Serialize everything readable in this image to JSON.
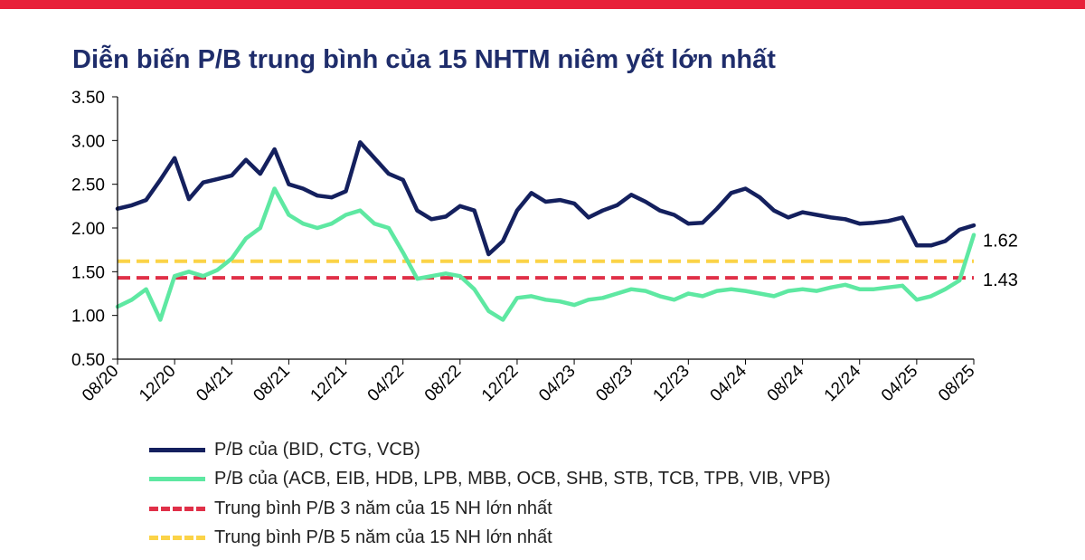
{
  "chart_data": {
    "type": "line",
    "title": "Diễn biến P/B trung bình của 15 NHTM niêm yết lớn nhất",
    "ylim": [
      0.5,
      3.5
    ],
    "yticks": [
      "3.50",
      "3.00",
      "2.50",
      "2.00",
      "1.50",
      "1.00",
      "0.50"
    ],
    "xlim": [
      "08/20",
      "08/25"
    ],
    "xticks": [
      "08/20",
      "12/20",
      "04/21",
      "08/21",
      "12/21",
      "04/22",
      "08/22",
      "12/22",
      "04/23",
      "08/23",
      "12/23",
      "04/24",
      "08/24",
      "12/24",
      "04/25",
      "08/25"
    ],
    "series": [
      {
        "name": "P/B của (BID, CTG, VCB)",
        "color": "#14205e",
        "style": "solid",
        "x": [
          "08/20",
          "09/20",
          "10/20",
          "11/20",
          "12/20",
          "01/21",
          "02/21",
          "03/21",
          "04/21",
          "05/21",
          "06/21",
          "07/21",
          "08/21",
          "09/21",
          "10/21",
          "11/21",
          "12/21",
          "01/22",
          "02/22",
          "03/22",
          "04/22",
          "05/22",
          "06/22",
          "07/22",
          "08/22",
          "09/22",
          "10/22",
          "11/22",
          "12/22",
          "01/23",
          "02/23",
          "03/23",
          "04/23",
          "05/23",
          "06/23",
          "07/23",
          "08/23",
          "09/23",
          "10/23",
          "11/23",
          "12/23",
          "01/24",
          "02/24",
          "03/24",
          "04/24",
          "05/24",
          "06/24",
          "07/24",
          "08/24",
          "09/24",
          "10/24",
          "11/24",
          "12/24",
          "01/25",
          "02/25",
          "03/25",
          "04/25",
          "05/25",
          "06/25",
          "07/25",
          "08/25"
        ],
        "values": [
          2.22,
          2.26,
          2.32,
          2.55,
          2.8,
          2.33,
          2.52,
          2.56,
          2.6,
          2.78,
          2.62,
          2.9,
          2.5,
          2.45,
          2.37,
          2.35,
          2.42,
          2.98,
          2.8,
          2.62,
          2.55,
          2.2,
          2.1,
          2.13,
          2.25,
          2.2,
          1.7,
          1.85,
          2.2,
          2.4,
          2.3,
          2.32,
          2.28,
          2.12,
          2.2,
          2.26,
          2.38,
          2.3,
          2.2,
          2.15,
          2.05,
          2.06,
          2.22,
          2.4,
          2.45,
          2.35,
          2.2,
          2.12,
          2.18,
          2.15,
          2.12,
          2.1,
          2.05,
          2.06,
          2.08,
          2.12,
          1.8,
          1.8,
          1.85,
          1.98,
          2.03
        ]
      },
      {
        "name": "P/B của (ACB, EIB, HDB,  LPB, MBB, OCB, SHB, STB, TCB, TPB, VIB, VPB)",
        "color": "#5ee8a2",
        "style": "solid",
        "x": [
          "08/20",
          "09/20",
          "10/20",
          "11/20",
          "12/20",
          "01/21",
          "02/21",
          "03/21",
          "04/21",
          "05/21",
          "06/21",
          "07/21",
          "08/21",
          "09/21",
          "10/21",
          "11/21",
          "12/21",
          "01/22",
          "02/22",
          "03/22",
          "04/22",
          "05/22",
          "06/22",
          "07/22",
          "08/22",
          "09/22",
          "10/22",
          "11/22",
          "12/22",
          "01/23",
          "02/23",
          "03/23",
          "04/23",
          "05/23",
          "06/23",
          "07/23",
          "08/23",
          "09/23",
          "10/23",
          "11/23",
          "12/23",
          "01/24",
          "02/24",
          "03/24",
          "04/24",
          "05/24",
          "06/24",
          "07/24",
          "08/24",
          "09/24",
          "10/24",
          "11/24",
          "12/24",
          "01/25",
          "02/25",
          "03/25",
          "04/25",
          "05/25",
          "06/25",
          "07/25",
          "08/25"
        ],
        "values": [
          1.1,
          1.18,
          1.3,
          0.95,
          1.45,
          1.5,
          1.45,
          1.52,
          1.65,
          1.88,
          2.0,
          2.45,
          2.15,
          2.05,
          2.0,
          2.05,
          2.15,
          2.2,
          2.05,
          2.0,
          1.72,
          1.42,
          1.45,
          1.48,
          1.45,
          1.3,
          1.05,
          0.95,
          1.2,
          1.22,
          1.18,
          1.16,
          1.12,
          1.18,
          1.2,
          1.25,
          1.3,
          1.28,
          1.22,
          1.18,
          1.25,
          1.22,
          1.28,
          1.3,
          1.28,
          1.25,
          1.22,
          1.28,
          1.3,
          1.28,
          1.32,
          1.35,
          1.3,
          1.3,
          1.32,
          1.34,
          1.18,
          1.22,
          1.3,
          1.4,
          1.92
        ]
      },
      {
        "name": "Trung bình P/B 3 năm của 15 NH lớn nhất",
        "color": "#e03048",
        "style": "dashed",
        "value": 1.43,
        "label": "1.43"
      },
      {
        "name": "Trung bình P/B 5 năm của 15 NH lớn nhất",
        "color": "#fbd347",
        "style": "dashed",
        "value": 1.62,
        "label": "1.62"
      }
    ],
    "legend_position": "bottom-left",
    "grid": false
  },
  "colors": {
    "top_band": "#e8213a",
    "title": "#1f2d6b",
    "axis": "#000000"
  }
}
